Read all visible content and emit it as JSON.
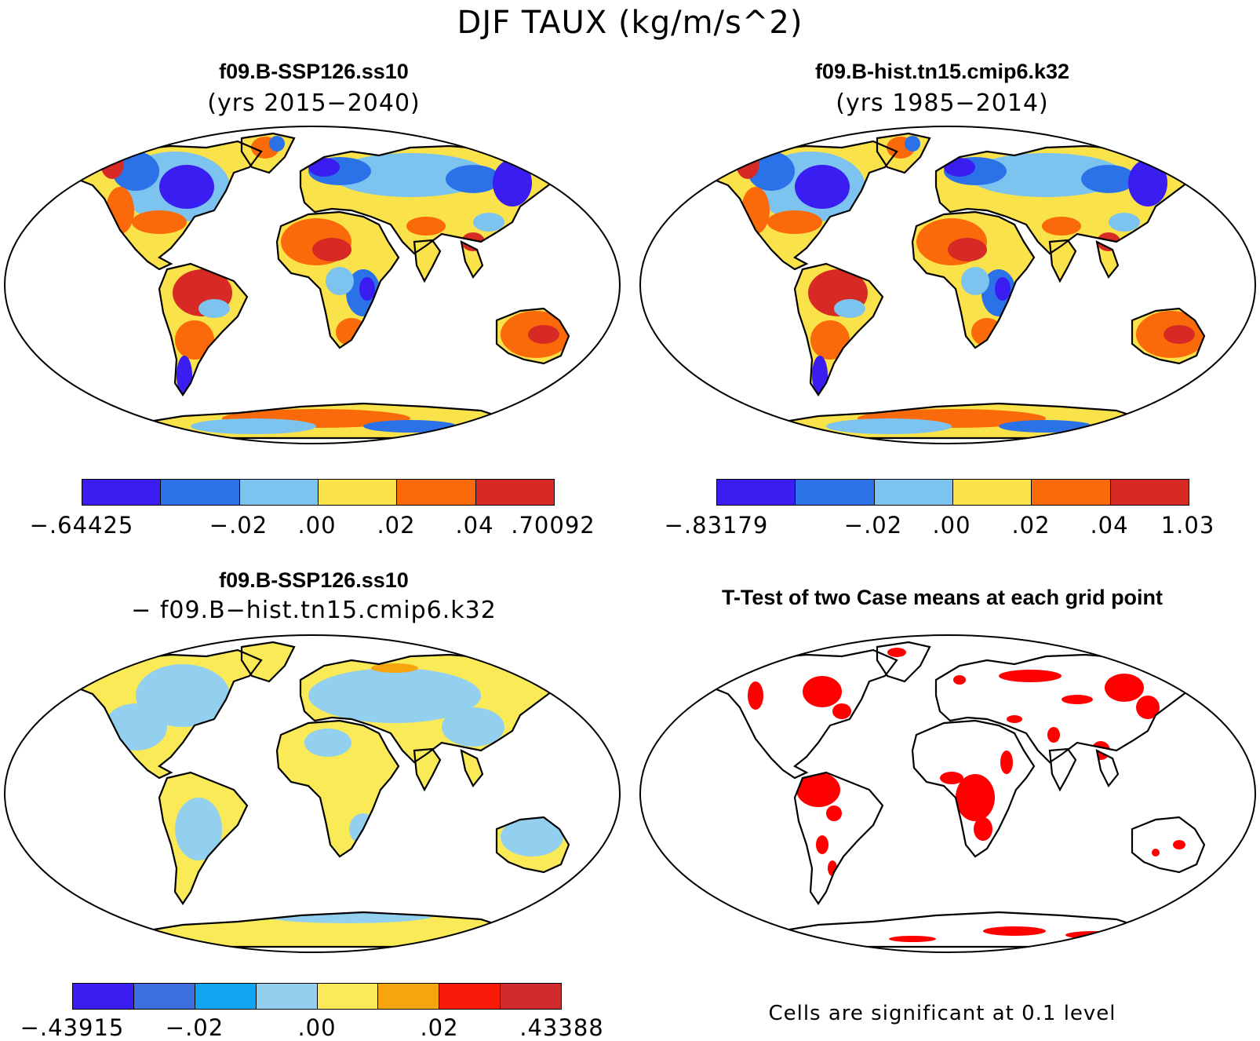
{
  "title": "DJF TAUX (kg/m/s^2)",
  "panels": {
    "top_left": {
      "title": "f09.B-SSP126.ss10",
      "subtitle": "(yrs 2015−2040)",
      "colorbar": {
        "colors": [
          "#3a1df0",
          "#2b72e8",
          "#7cc4ef",
          "#fae24a",
          "#fa6a0a",
          "#d72a25"
        ],
        "labels": [
          "−.64425",
          "−.02",
          ".00",
          ".02",
          ".04",
          ".70092"
        ]
      }
    },
    "top_right": {
      "title": "f09.B-hist.tn15.cmip6.k32",
      "subtitle": "(yrs 1985−2014)",
      "colorbar": {
        "colors": [
          "#3a1df0",
          "#2b72e8",
          "#7cc4ef",
          "#fae24a",
          "#fa6a0a",
          "#d72a25"
        ],
        "labels": [
          "−.83179",
          "−.02",
          ".00",
          ".02",
          ".04",
          "1.03"
        ]
      }
    },
    "bottom_left": {
      "title": "f09.B-SSP126.ss10",
      "subtitle": "− f09.B−hist.tn15.cmip6.k32",
      "colorbar": {
        "colors": [
          "#3a1df0",
          "#3d6ee0",
          "#12a6f2",
          "#93d0ef",
          "#faea58",
          "#f7a50f",
          "#fa1a0a",
          "#d02c2c"
        ],
        "labels": [
          "−.43915",
          "−.02",
          ".00",
          ".02",
          ".43388"
        ]
      }
    },
    "bottom_right": {
      "title": "T-Test of two Case means at each grid point",
      "footnote": "Cells are significant at 0.1 level",
      "significant_color": "#ff0000"
    }
  }
}
